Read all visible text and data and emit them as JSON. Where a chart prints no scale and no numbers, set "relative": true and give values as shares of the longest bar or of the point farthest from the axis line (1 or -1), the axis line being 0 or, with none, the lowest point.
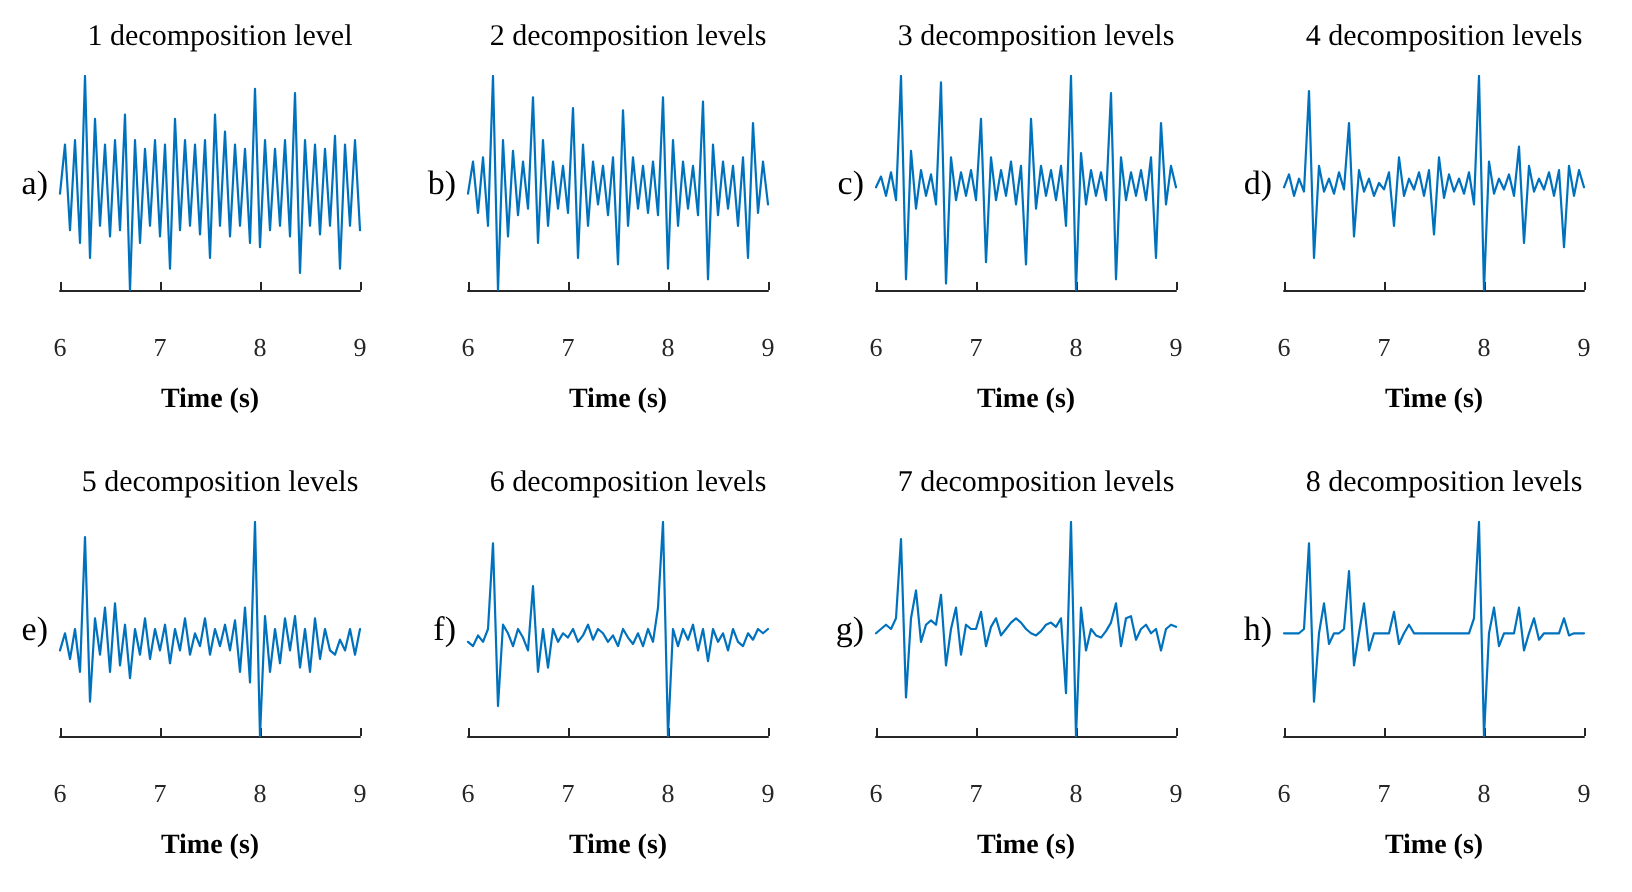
{
  "chart_data": [
    {
      "type": "line",
      "title": "1 decomposition level",
      "xlabel": "Time (s)",
      "annotations": [
        "a)"
      ],
      "relative": true,
      "xlim": [
        6,
        9
      ],
      "xticks": [
        6,
        7,
        8,
        9
      ],
      "color": "#0072bd",
      "x": [
        6,
        6.05,
        6.1,
        6.15,
        6.2,
        6.25,
        6.3,
        6.35,
        6.4,
        6.45,
        6.5,
        6.55,
        6.6,
        6.65,
        6.7,
        6.75,
        6.8,
        6.85,
        6.9,
        6.95,
        7,
        7.05,
        7.1,
        7.15,
        7.2,
        7.25,
        7.3,
        7.35,
        7.4,
        7.45,
        7.5,
        7.55,
        7.6,
        7.65,
        7.7,
        7.75,
        7.8,
        7.85,
        7.9,
        7.95,
        8,
        8.05,
        8.1,
        8.15,
        8.2,
        8.25,
        8.3,
        8.35,
        8.4,
        8.45,
        8.5,
        8.55,
        8.6,
        8.65,
        8.7,
        8.75,
        8.8,
        8.85,
        8.9,
        8.95,
        9
      ],
      "values": [
        0.45,
        0.68,
        0.28,
        0.7,
        0.22,
        1.0,
        0.15,
        0.8,
        0.3,
        0.68,
        0.25,
        0.7,
        0.28,
        0.82,
        0.0,
        0.7,
        0.22,
        0.66,
        0.3,
        0.7,
        0.25,
        0.68,
        0.1,
        0.8,
        0.28,
        0.7,
        0.3,
        0.68,
        0.26,
        0.7,
        0.15,
        0.82,
        0.3,
        0.74,
        0.25,
        0.68,
        0.3,
        0.66,
        0.22,
        0.94,
        0.2,
        0.7,
        0.28,
        0.66,
        0.3,
        0.7,
        0.25,
        0.92,
        0.08,
        0.7,
        0.3,
        0.68,
        0.26,
        0.66,
        0.3,
        0.72,
        0.1,
        0.68,
        0.3,
        0.7,
        0.28
      ]
    },
    {
      "type": "line",
      "title": "2 decomposition levels",
      "xlabel": "Time (s)",
      "annotations": [
        "b)"
      ],
      "relative": true,
      "xlim": [
        6,
        9
      ],
      "xticks": [
        6,
        7,
        8,
        9
      ],
      "color": "#0072bd",
      "x": [
        6,
        6.05,
        6.1,
        6.15,
        6.2,
        6.25,
        6.3,
        6.35,
        6.4,
        6.45,
        6.5,
        6.55,
        6.6,
        6.65,
        6.7,
        6.75,
        6.8,
        6.85,
        6.9,
        6.95,
        7,
        7.05,
        7.1,
        7.15,
        7.2,
        7.25,
        7.3,
        7.35,
        7.4,
        7.45,
        7.5,
        7.55,
        7.6,
        7.65,
        7.7,
        7.75,
        7.8,
        7.85,
        7.9,
        7.95,
        8,
        8.05,
        8.1,
        8.15,
        8.2,
        8.25,
        8.3,
        8.35,
        8.4,
        8.45,
        8.5,
        8.55,
        8.6,
        8.65,
        8.7,
        8.75,
        8.8,
        8.85,
        8.9,
        8.95,
        9
      ],
      "values": [
        0.45,
        0.6,
        0.36,
        0.62,
        0.3,
        1.0,
        0.0,
        0.7,
        0.25,
        0.65,
        0.35,
        0.6,
        0.38,
        0.9,
        0.22,
        0.7,
        0.3,
        0.6,
        0.38,
        0.58,
        0.36,
        0.85,
        0.15,
        0.68,
        0.3,
        0.6,
        0.4,
        0.58,
        0.35,
        0.62,
        0.12,
        0.84,
        0.3,
        0.62,
        0.38,
        0.58,
        0.36,
        0.6,
        0.35,
        0.9,
        0.1,
        0.7,
        0.3,
        0.6,
        0.38,
        0.58,
        0.35,
        0.88,
        0.05,
        0.68,
        0.35,
        0.6,
        0.38,
        0.58,
        0.3,
        0.62,
        0.15,
        0.78,
        0.36,
        0.6,
        0.4
      ]
    },
    {
      "type": "line",
      "title": "3 decomposition levels",
      "xlabel": "Time (s)",
      "annotations": [
        "c)"
      ],
      "relative": true,
      "xlim": [
        6,
        9
      ],
      "xticks": [
        6,
        7,
        8,
        9
      ],
      "color": "#0072bd",
      "x": [
        6,
        6.05,
        6.1,
        6.15,
        6.2,
        6.25,
        6.3,
        6.35,
        6.4,
        6.45,
        6.5,
        6.55,
        6.6,
        6.65,
        6.7,
        6.75,
        6.8,
        6.85,
        6.9,
        6.95,
        7,
        7.05,
        7.1,
        7.15,
        7.2,
        7.25,
        7.3,
        7.35,
        7.4,
        7.45,
        7.5,
        7.55,
        7.6,
        7.65,
        7.7,
        7.75,
        7.8,
        7.85,
        7.9,
        7.95,
        8,
        8.05,
        8.1,
        8.15,
        8.2,
        8.25,
        8.3,
        8.35,
        8.4,
        8.45,
        8.5,
        8.55,
        8.6,
        8.65,
        8.7,
        8.75,
        8.8,
        8.85,
        8.9,
        8.95,
        9
      ],
      "values": [
        0.48,
        0.53,
        0.44,
        0.55,
        0.42,
        1.0,
        0.05,
        0.65,
        0.38,
        0.56,
        0.44,
        0.54,
        0.4,
        0.97,
        0.03,
        0.62,
        0.42,
        0.55,
        0.44,
        0.56,
        0.42,
        0.8,
        0.13,
        0.62,
        0.42,
        0.56,
        0.44,
        0.6,
        0.4,
        0.58,
        0.12,
        0.8,
        0.38,
        0.58,
        0.44,
        0.56,
        0.42,
        0.58,
        0.3,
        1.0,
        0.0,
        0.64,
        0.4,
        0.56,
        0.44,
        0.55,
        0.42,
        0.92,
        0.05,
        0.62,
        0.42,
        0.55,
        0.44,
        0.56,
        0.42,
        0.62,
        0.15,
        0.78,
        0.4,
        0.58,
        0.48
      ]
    },
    {
      "type": "line",
      "title": "4 decomposition levels",
      "xlabel": "Time (s)",
      "annotations": [
        "d)"
      ],
      "relative": true,
      "xlim": [
        6,
        9
      ],
      "xticks": [
        6,
        7,
        8,
        9
      ],
      "color": "#0072bd",
      "x": [
        6,
        6.05,
        6.1,
        6.15,
        6.2,
        6.25,
        6.3,
        6.35,
        6.4,
        6.45,
        6.5,
        6.55,
        6.6,
        6.65,
        6.7,
        6.75,
        6.8,
        6.85,
        6.9,
        6.95,
        7,
        7.05,
        7.1,
        7.15,
        7.2,
        7.25,
        7.3,
        7.35,
        7.4,
        7.45,
        7.5,
        7.55,
        7.6,
        7.65,
        7.7,
        7.75,
        7.8,
        7.85,
        7.9,
        7.95,
        8,
        8.05,
        8.1,
        8.15,
        8.2,
        8.25,
        8.3,
        8.35,
        8.4,
        8.45,
        8.5,
        8.55,
        8.6,
        8.65,
        8.7,
        8.75,
        8.8,
        8.85,
        8.9,
        8.95,
        9
      ],
      "values": [
        0.48,
        0.54,
        0.44,
        0.52,
        0.46,
        0.93,
        0.15,
        0.58,
        0.46,
        0.52,
        0.45,
        0.55,
        0.47,
        0.78,
        0.25,
        0.56,
        0.46,
        0.52,
        0.44,
        0.5,
        0.47,
        0.55,
        0.3,
        0.62,
        0.44,
        0.52,
        0.47,
        0.55,
        0.44,
        0.56,
        0.26,
        0.62,
        0.43,
        0.54,
        0.46,
        0.52,
        0.45,
        0.55,
        0.4,
        1.0,
        0.0,
        0.6,
        0.45,
        0.52,
        0.47,
        0.54,
        0.44,
        0.67,
        0.22,
        0.58,
        0.46,
        0.52,
        0.47,
        0.55,
        0.44,
        0.56,
        0.2,
        0.58,
        0.44,
        0.56,
        0.48
      ]
    },
    {
      "type": "line",
      "title": "5 decomposition levels",
      "xlabel": "Time (s)",
      "annotations": [
        "e)"
      ],
      "relative": true,
      "xlim": [
        6,
        9
      ],
      "xticks": [
        6,
        7,
        8,
        9
      ],
      "color": "#0072bd",
      "x": [
        6,
        6.05,
        6.1,
        6.15,
        6.2,
        6.25,
        6.3,
        6.35,
        6.4,
        6.45,
        6.5,
        6.55,
        6.6,
        6.65,
        6.7,
        6.75,
        6.8,
        6.85,
        6.9,
        6.95,
        7,
        7.05,
        7.1,
        7.15,
        7.2,
        7.25,
        7.3,
        7.35,
        7.4,
        7.45,
        7.5,
        7.55,
        7.6,
        7.65,
        7.7,
        7.75,
        7.8,
        7.85,
        7.9,
        7.95,
        8,
        8.05,
        8.1,
        8.15,
        8.2,
        8.25,
        8.3,
        8.35,
        8.4,
        8.45,
        8.5,
        8.55,
        8.6,
        8.65,
        8.7,
        8.75,
        8.8,
        8.85,
        8.9,
        8.95,
        9
      ],
      "values": [
        0.4,
        0.48,
        0.36,
        0.5,
        0.3,
        0.93,
        0.16,
        0.55,
        0.38,
        0.6,
        0.3,
        0.62,
        0.33,
        0.52,
        0.27,
        0.5,
        0.38,
        0.55,
        0.36,
        0.5,
        0.4,
        0.52,
        0.34,
        0.5,
        0.4,
        0.55,
        0.38,
        0.48,
        0.42,
        0.55,
        0.38,
        0.5,
        0.42,
        0.52,
        0.4,
        0.54,
        0.3,
        0.6,
        0.25,
        1.0,
        0.0,
        0.56,
        0.3,
        0.5,
        0.34,
        0.55,
        0.4,
        0.56,
        0.32,
        0.5,
        0.3,
        0.55,
        0.36,
        0.5,
        0.4,
        0.38,
        0.45,
        0.4,
        0.5,
        0.38,
        0.5
      ]
    },
    {
      "type": "line",
      "title": "6 decomposition levels",
      "xlabel": "Time (s)",
      "annotations": [
        "f)"
      ],
      "relative": true,
      "xlim": [
        6,
        9
      ],
      "xticks": [
        6,
        7,
        8,
        9
      ],
      "color": "#0072bd",
      "x": [
        6,
        6.05,
        6.1,
        6.15,
        6.2,
        6.25,
        6.3,
        6.35,
        6.4,
        6.45,
        6.5,
        6.55,
        6.6,
        6.65,
        6.7,
        6.75,
        6.8,
        6.85,
        6.9,
        6.95,
        7,
        7.05,
        7.1,
        7.15,
        7.2,
        7.25,
        7.3,
        7.35,
        7.4,
        7.45,
        7.5,
        7.55,
        7.6,
        7.65,
        7.7,
        7.75,
        7.8,
        7.85,
        7.9,
        7.95,
        8,
        8.05,
        8.1,
        8.15,
        8.2,
        8.25,
        8.3,
        8.35,
        8.4,
        8.45,
        8.5,
        8.55,
        8.6,
        8.65,
        8.7,
        8.75,
        8.8,
        8.85,
        8.9,
        8.95,
        9
      ],
      "values": [
        0.44,
        0.42,
        0.47,
        0.44,
        0.5,
        0.9,
        0.14,
        0.52,
        0.48,
        0.42,
        0.5,
        0.46,
        0.4,
        0.7,
        0.3,
        0.5,
        0.32,
        0.5,
        0.44,
        0.48,
        0.46,
        0.5,
        0.44,
        0.47,
        0.52,
        0.45,
        0.5,
        0.48,
        0.44,
        0.47,
        0.42,
        0.5,
        0.46,
        0.43,
        0.48,
        0.42,
        0.5,
        0.44,
        0.6,
        1.0,
        0.0,
        0.5,
        0.42,
        0.5,
        0.45,
        0.52,
        0.4,
        0.5,
        0.35,
        0.5,
        0.44,
        0.48,
        0.4,
        0.5,
        0.44,
        0.42,
        0.48,
        0.45,
        0.5,
        0.48,
        0.5
      ]
    },
    {
      "type": "line",
      "title": "7 decomposition levels",
      "xlabel": "Time (s)",
      "annotations": [
        "g)"
      ],
      "relative": true,
      "xlim": [
        6,
        9
      ],
      "xticks": [
        6,
        7,
        8,
        9
      ],
      "color": "#0072bd",
      "x": [
        6,
        6.05,
        6.1,
        6.15,
        6.2,
        6.25,
        6.3,
        6.35,
        6.4,
        6.45,
        6.5,
        6.55,
        6.6,
        6.65,
        6.7,
        6.75,
        6.8,
        6.85,
        6.9,
        6.95,
        7,
        7.05,
        7.1,
        7.15,
        7.2,
        7.25,
        7.3,
        7.35,
        7.4,
        7.45,
        7.5,
        7.55,
        7.6,
        7.65,
        7.7,
        7.75,
        7.8,
        7.85,
        7.9,
        7.95,
        8,
        8.05,
        8.1,
        8.15,
        8.2,
        8.25,
        8.3,
        8.35,
        8.4,
        8.45,
        8.5,
        8.55,
        8.6,
        8.65,
        8.7,
        8.75,
        8.8,
        8.85,
        8.9,
        8.95,
        9
      ],
      "values": [
        0.48,
        0.5,
        0.52,
        0.5,
        0.55,
        0.92,
        0.18,
        0.55,
        0.68,
        0.44,
        0.52,
        0.54,
        0.52,
        0.66,
        0.33,
        0.5,
        0.6,
        0.38,
        0.52,
        0.5,
        0.5,
        0.58,
        0.42,
        0.51,
        0.55,
        0.47,
        0.5,
        0.53,
        0.55,
        0.53,
        0.5,
        0.48,
        0.47,
        0.49,
        0.52,
        0.53,
        0.51,
        0.55,
        0.2,
        1.0,
        0.0,
        0.6,
        0.4,
        0.5,
        0.47,
        0.46,
        0.49,
        0.53,
        0.62,
        0.42,
        0.55,
        0.56,
        0.45,
        0.5,
        0.52,
        0.48,
        0.5,
        0.4,
        0.5,
        0.52,
        0.51
      ]
    },
    {
      "type": "line",
      "title": "8 decomposition levels",
      "xlabel": "Time (s)",
      "annotations": [
        "h)"
      ],
      "relative": true,
      "xlim": [
        6,
        9
      ],
      "xticks": [
        6,
        7,
        8,
        9
      ],
      "color": "#0072bd",
      "x": [
        6,
        6.05,
        6.1,
        6.15,
        6.2,
        6.25,
        6.3,
        6.35,
        6.4,
        6.45,
        6.5,
        6.55,
        6.6,
        6.65,
        6.7,
        6.75,
        6.8,
        6.85,
        6.9,
        6.95,
        7,
        7.05,
        7.1,
        7.15,
        7.2,
        7.25,
        7.3,
        7.35,
        7.4,
        7.45,
        7.5,
        7.55,
        7.6,
        7.65,
        7.7,
        7.75,
        7.8,
        7.85,
        7.9,
        7.95,
        8,
        8.05,
        8.1,
        8.15,
        8.2,
        8.25,
        8.3,
        8.35,
        8.4,
        8.45,
        8.5,
        8.55,
        8.6,
        8.65,
        8.7,
        8.75,
        8.8,
        8.85,
        8.9,
        8.95,
        9
      ],
      "values": [
        0.48,
        0.48,
        0.48,
        0.48,
        0.5,
        0.9,
        0.16,
        0.48,
        0.62,
        0.43,
        0.48,
        0.48,
        0.5,
        0.77,
        0.33,
        0.48,
        0.62,
        0.4,
        0.48,
        0.48,
        0.48,
        0.48,
        0.58,
        0.43,
        0.48,
        0.52,
        0.48,
        0.48,
        0.48,
        0.48,
        0.48,
        0.48,
        0.48,
        0.48,
        0.48,
        0.48,
        0.48,
        0.48,
        0.55,
        1.0,
        0.0,
        0.48,
        0.6,
        0.42,
        0.48,
        0.48,
        0.48,
        0.6,
        0.4,
        0.48,
        0.55,
        0.45,
        0.48,
        0.48,
        0.48,
        0.48,
        0.55,
        0.47,
        0.48,
        0.48,
        0.48
      ]
    }
  ]
}
